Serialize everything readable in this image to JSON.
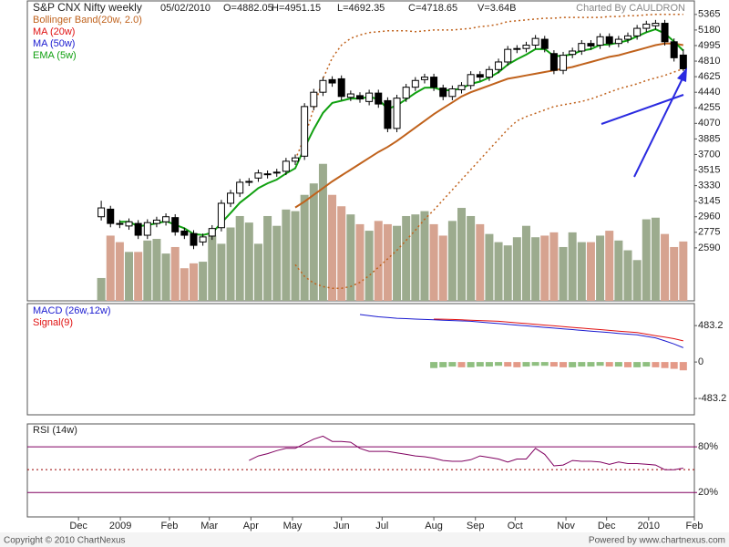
{
  "chart_data": [
    {
      "type": "candlestick",
      "title": "S&P CNX Nifty weekly",
      "date": "05/02/2010",
      "quote": [
        "O=4882.05",
        "H=4951.15",
        "L=4692.35",
        "C=4718.65",
        "V=3.64B"
      ],
      "credit": "Charted By CAULDRON",
      "xlim": [
        -8,
        64.2
      ],
      "x": [
        0,
        1,
        2,
        3,
        4,
        5,
        6,
        7,
        8,
        9,
        10,
        11,
        12,
        13,
        14,
        15,
        16,
        17,
        18,
        19,
        20,
        21,
        22,
        23,
        24,
        25,
        26,
        27,
        28,
        29,
        30,
        31,
        32,
        33,
        34,
        35,
        36,
        37,
        38,
        39,
        40,
        41,
        42,
        43,
        44,
        45,
        46,
        47,
        48,
        49,
        50,
        51,
        52,
        53,
        54,
        55,
        56,
        57,
        58,
        59,
        60,
        61,
        62,
        63
      ],
      "ylim": [
        1960,
        5450
      ],
      "yticks": [
        5365,
        5180,
        4995,
        4810,
        4625,
        4440,
        4255,
        4070,
        3885,
        3700,
        3515,
        3330,
        3145,
        2960,
        2775,
        2590
      ],
      "open": [
        2960,
        3050,
        2880,
        2850,
        2880,
        2740,
        2880,
        2900,
        2950,
        2790,
        2760,
        2660,
        2730,
        2830,
        3120,
        3240,
        3370,
        3420,
        3460,
        3480,
        3500,
        3620,
        3680,
        4270,
        4440,
        4590,
        4600,
        4380,
        4400,
        4330,
        4430,
        4340,
        4010,
        4370,
        4500,
        4590,
        4620,
        4490,
        4390,
        4470,
        4520,
        4650,
        4620,
        4710,
        4800,
        4950,
        4960,
        5000,
        5070,
        4900,
        4700,
        4890,
        4930,
        5020,
        5000,
        5100,
        5020,
        5070,
        5110,
        5200,
        5230,
        5260,
        5040,
        4882.05
      ],
      "high": [
        3150,
        3090,
        2920,
        2940,
        2920,
        2930,
        2960,
        3000,
        2990,
        2830,
        2800,
        2760,
        2860,
        3160,
        3280,
        3410,
        3420,
        3520,
        3510,
        3530,
        3660,
        3700,
        4310,
        4480,
        4620,
        4630,
        4640,
        4460,
        4440,
        4470,
        4470,
        4380,
        4410,
        4540,
        4620,
        4660,
        4660,
        4530,
        4520,
        4560,
        4690,
        4690,
        4750,
        4840,
        4990,
        5000,
        5040,
        5120,
        5110,
        4940,
        4920,
        4970,
        5060,
        5060,
        5140,
        5140,
        5110,
        5150,
        5240,
        5290,
        5300,
        5300,
        5080,
        4951.15
      ],
      "low": [
        2915,
        2835,
        2825,
        2805,
        2695,
        2695,
        2835,
        2855,
        2735,
        2695,
        2575,
        2615,
        2685,
        2785,
        3075,
        3195,
        3325,
        3375,
        3415,
        3435,
        3455,
        3575,
        3635,
        4225,
        4395,
        4505,
        4345,
        4335,
        4315,
        4285,
        4255,
        3965,
        3965,
        4325,
        4455,
        4545,
        4455,
        4345,
        4345,
        4425,
        4475,
        4575,
        4575,
        4665,
        4755,
        4905,
        4915,
        4955,
        4915,
        4655,
        4655,
        4845,
        4885,
        4945,
        4955,
        4975,
        4975,
        5025,
        5065,
        5155,
        5185,
        4995,
        4805,
        4692.35
      ],
      "close": [
        3065,
        2880,
        2870,
        2900,
        2740,
        2890,
        2920,
        2960,
        2780,
        2740,
        2620,
        2720,
        2820,
        3120,
        3240,
        3370,
        3380,
        3480,
        3470,
        3490,
        3620,
        3660,
        4270,
        4440,
        4580,
        4550,
        4390,
        4420,
        4360,
        4430,
        4300,
        4010,
        4370,
        4500,
        4580,
        4620,
        4500,
        4390,
        4480,
        4520,
        4650,
        4620,
        4710,
        4800,
        4950,
        4960,
        5000,
        5080,
        4960,
        4700,
        4880,
        4930,
        5020,
        4990,
        5100,
        5020,
        5070,
        5110,
        5200,
        5250,
        5260,
        5040,
        4850,
        4718.65
      ],
      "volume": [
        1.4,
        4.0,
        3.6,
        3.0,
        3.0,
        3.7,
        3.8,
        2.9,
        3.3,
        2.0,
        2.3,
        2.4,
        4.0,
        3.5,
        4.5,
        5.2,
        4.8,
        3.5,
        5.2,
        4.6,
        5.6,
        5.5,
        6.5,
        7.2,
        8.4,
        6.5,
        5.8,
        5.3,
        4.7,
        4.3,
        4.9,
        4.7,
        4.6,
        5.2,
        5.3,
        5.5,
        4.7,
        4.0,
        4.9,
        5.7,
        5.2,
        4.7,
        4.1,
        3.6,
        3.4,
        3.9,
        4.6,
        3.9,
        4.0,
        4.2,
        3.3,
        4.2,
        3.6,
        3.6,
        4.0,
        4.3,
        3.7,
        3.1,
        2.5,
        5.0,
        5.1,
        4.1,
        3.3,
        3.64
      ],
      "volume_lim": [
        0,
        18
      ],
      "up_color": "#9cab8e",
      "down_color": "#d6a390",
      "series": [
        {
          "name": "Bollinger Band(20w, 2.0)",
          "color": "#c0621c",
          "dotted": true,
          "upper": [
            null,
            null,
            null,
            null,
            null,
            null,
            null,
            null,
            null,
            null,
            null,
            null,
            null,
            null,
            null,
            null,
            null,
            null,
            null,
            null,
            null,
            3640,
            3900,
            4250,
            4600,
            4850,
            5000,
            5080,
            5120,
            5150,
            5160,
            5170,
            5170,
            5170,
            5160,
            5170,
            5180,
            5180,
            5180,
            5190,
            5200,
            5220,
            5230,
            5250,
            5280,
            5290,
            5300,
            5310,
            5320,
            5320,
            5330,
            5330,
            5330,
            5330,
            5330,
            5340,
            5340,
            5350,
            5350,
            5360,
            5365,
            5365,
            5365,
            5365
          ],
          "lower": [
            null,
            null,
            null,
            null,
            null,
            null,
            null,
            null,
            null,
            null,
            null,
            null,
            null,
            null,
            null,
            null,
            null,
            null,
            null,
            null,
            null,
            2390,
            2250,
            2170,
            2130,
            2110,
            2110,
            2130,
            2180,
            2260,
            2360,
            2460,
            2560,
            2680,
            2800,
            2930,
            3040,
            3160,
            3280,
            3400,
            3520,
            3640,
            3760,
            3880,
            4000,
            4100,
            4150,
            4190,
            4230,
            4270,
            4290,
            4310,
            4330,
            4360,
            4400,
            4440,
            4480,
            4510,
            4540,
            4580,
            4610,
            4640,
            4680,
            4720
          ]
        },
        {
          "name": "MA (20w)",
          "color": "#e01010",
          "line_color": "#c0621c",
          "values": [
            null,
            null,
            null,
            null,
            null,
            null,
            null,
            null,
            null,
            null,
            null,
            null,
            null,
            null,
            null,
            null,
            null,
            null,
            null,
            null,
            null,
            3070,
            3140,
            3220,
            3300,
            3380,
            3450,
            3520,
            3590,
            3660,
            3730,
            3790,
            3860,
            3940,
            4020,
            4100,
            4180,
            4250,
            4320,
            4390,
            4440,
            4480,
            4520,
            4560,
            4600,
            4620,
            4640,
            4660,
            4680,
            4700,
            4720,
            4740,
            4770,
            4800,
            4830,
            4860,
            4880,
            4910,
            4940,
            4970,
            5000,
            5020,
            5020,
            5000
          ]
        },
        {
          "name": "MA (50w)",
          "color": "#1a1ad0"
        },
        {
          "name": "EMA (5w)",
          "color": "#10a010",
          "values": [
            null,
            null,
            2900,
            2900,
            2847,
            2861,
            2881,
            2907,
            2865,
            2823,
            2755,
            2743,
            2769,
            2886,
            3004,
            3126,
            3211,
            3301,
            3357,
            3401,
            3474,
            3536,
            3781,
            4001,
            4194,
            4313,
            4339,
            4366,
            4364,
            4386,
            4357,
            4241,
            4284,
            4356,
            4431,
            4494,
            4496,
            4461,
            4467,
            4485,
            4540,
            4567,
            4615,
            4677,
            4768,
            4832,
            4888,
            4952,
            4955,
            4870,
            4873,
            4892,
            4935,
            4953,
            5002,
            5008,
            5029,
            5056,
            5104,
            5153,
            5189,
            5139,
            5043,
            4935
          ]
        }
      ]
    },
    {
      "type": "macd",
      "xlim": [
        -8,
        64.2
      ],
      "x": [
        28,
        29,
        30,
        31,
        32,
        33,
        34,
        35,
        36,
        37,
        38,
        39,
        40,
        41,
        42,
        43,
        44,
        45,
        46,
        47,
        48,
        49,
        50,
        51,
        52,
        53,
        54,
        55,
        56,
        57,
        58,
        59,
        60,
        61,
        62,
        63
      ],
      "ylim": [
        -700,
        775
      ],
      "yticks": [
        483.2,
        0,
        -483.2
      ],
      "up_color": "#8fbf80",
      "down_color": "#e49a88",
      "series": [
        {
          "name": "MACD (26w,12w)",
          "color": "#1a1ad0",
          "values": [
            630,
            615,
            600,
            590,
            580,
            575,
            570,
            565,
            560,
            555,
            550,
            545,
            540,
            530,
            520,
            510,
            500,
            490,
            480,
            470,
            460,
            450,
            440,
            430,
            420,
            410,
            400,
            390,
            380,
            370,
            360,
            340,
            320,
            280,
            240,
            190
          ]
        },
        {
          "name": "Signal(9)",
          "color": "#e01010",
          "values": [
            null,
            null,
            null,
            null,
            null,
            null,
            null,
            null,
            570,
            568,
            565,
            560,
            555,
            550,
            545,
            540,
            530,
            520,
            510,
            500,
            490,
            480,
            470,
            460,
            450,
            440,
            430,
            420,
            410,
            400,
            390,
            370,
            350,
            330,
            310,
            280
          ]
        }
      ],
      "histogram": [
        null,
        null,
        null,
        null,
        null,
        null,
        null,
        null,
        -80,
        -70,
        -60,
        -70,
        -70,
        -60,
        -60,
        -50,
        -60,
        -70,
        -60,
        -50,
        -50,
        -60,
        -70,
        -70,
        -60,
        -60,
        -50,
        -60,
        -60,
        -70,
        -70,
        -60,
        -70,
        -80,
        -90,
        -110
      ]
    },
    {
      "type": "rsi",
      "name": "RSI (14w)",
      "color": "#800060",
      "xlim": [
        -8,
        64.2
      ],
      "xticks": [
        {
          "value": -2.46,
          "label": "Dec"
        },
        {
          "value": 2.07,
          "label": "2009"
        },
        {
          "value": 7.38,
          "label": "Feb"
        },
        {
          "value": 11.7,
          "label": "Mar"
        },
        {
          "value": 16.2,
          "label": "Apr"
        },
        {
          "value": 20.7,
          "label": "May"
        },
        {
          "value": 26.0,
          "label": "Jun"
        },
        {
          "value": 30.4,
          "label": "Jul"
        },
        {
          "value": 36.0,
          "label": "Aug"
        },
        {
          "value": 40.5,
          "label": "Sep"
        },
        {
          "value": 44.8,
          "label": "Oct"
        },
        {
          "value": 50.3,
          "label": "Nov"
        },
        {
          "value": 54.7,
          "label": "Dec"
        },
        {
          "value": 59.25,
          "label": "2010"
        },
        {
          "value": 64.2,
          "label": "Feb"
        }
      ],
      "x": [
        16,
        17,
        18,
        19,
        20,
        21,
        22,
        23,
        24,
        25,
        26,
        27,
        28,
        29,
        30,
        31,
        32,
        33,
        34,
        35,
        36,
        37,
        38,
        39,
        40,
        41,
        42,
        43,
        44,
        45,
        46,
        47,
        48,
        49,
        50,
        51,
        52,
        53,
        54,
        55,
        56,
        57,
        58,
        59,
        60,
        61,
        62,
        63
      ],
      "ylim": [
        -12,
        110
      ],
      "yticks": [
        {
          "value": 80,
          "label": "80%"
        },
        {
          "value": 20,
          "label": "20%"
        }
      ],
      "midline": 50,
      "values": [
        62,
        68,
        71,
        75,
        78,
        78,
        84,
        90,
        94,
        87,
        87,
        86,
        78,
        74,
        74,
        74,
        72,
        70,
        68,
        67,
        65,
        62,
        61,
        61,
        63,
        68,
        66,
        64,
        60,
        64,
        64,
        78,
        70,
        55,
        56,
        62,
        61,
        61,
        60,
        57,
        60,
        58,
        58,
        57,
        56,
        50,
        50,
        52
      ]
    }
  ],
  "footer": {
    "left": "Copyright © 2010 ChartNexus",
    "right": "Powered by www.chartnexus.com"
  }
}
